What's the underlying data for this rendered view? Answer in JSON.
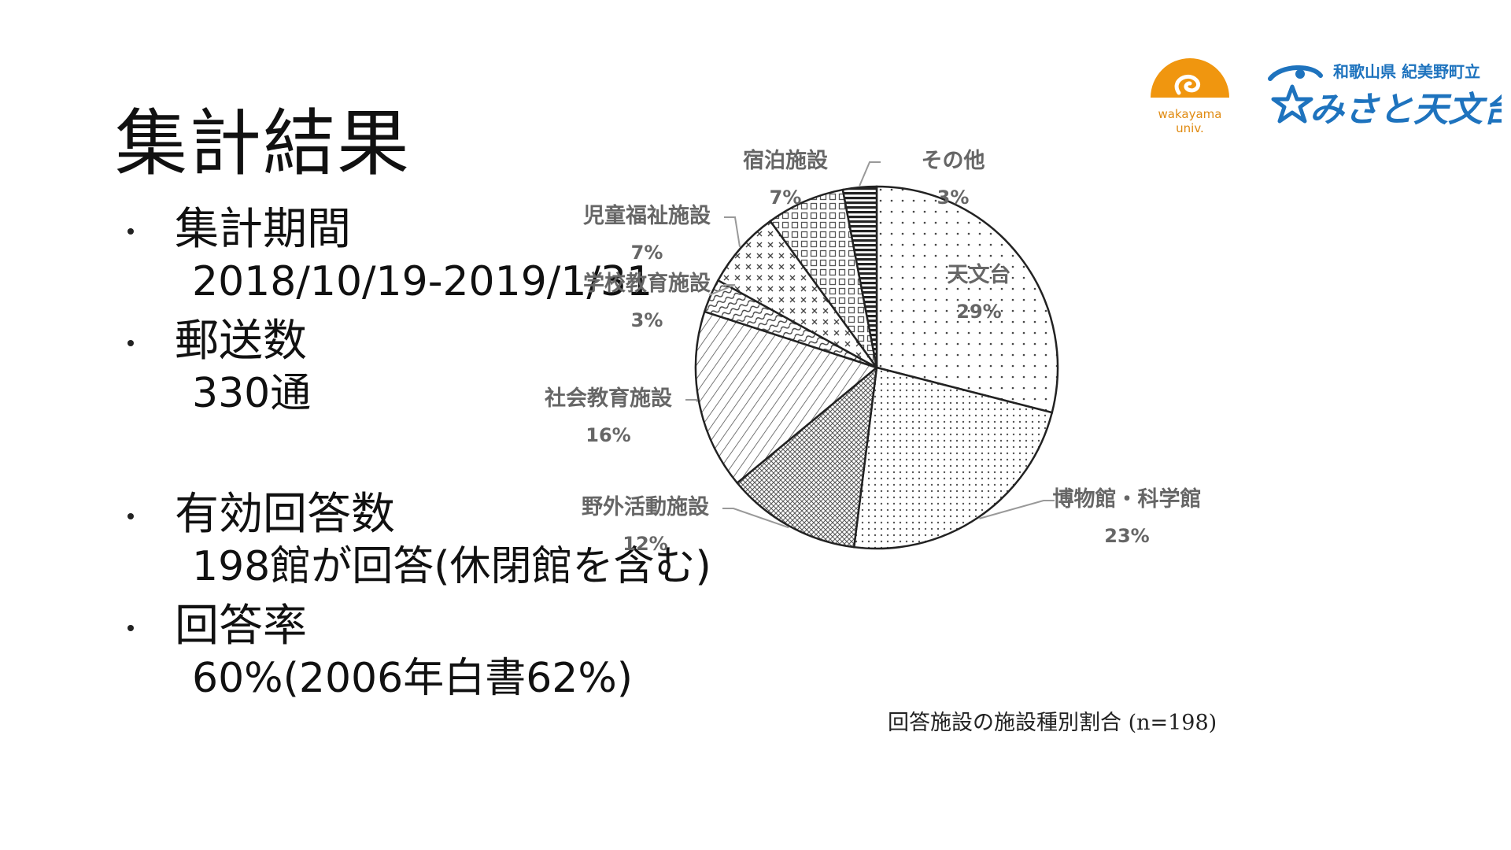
{
  "slide": {
    "title": "集計結果",
    "bullets": [
      {
        "head": "集計期間",
        "sub": "2018/10/19-2019/1/31"
      },
      {
        "head": "郵送数",
        "sub": "330通"
      },
      {
        "head": "有効回答数",
        "sub": "198館が回答(休閉館を含む)"
      },
      {
        "head": "回答率",
        "sub": "60%(2006年白書62%)"
      }
    ]
  },
  "logos": {
    "wakayama_line1": "wakayama",
    "wakayama_line2": "univ.",
    "misato_top": "和歌山県 紀美野町立",
    "misato_main": "みさと天文台",
    "colors": {
      "wakayama_orange": "#F0960F",
      "misato_blue": "#1E73BE"
    }
  },
  "chart_data": {
    "type": "pie",
    "caption": "回答施設の施設種別割合 (n=198)",
    "start_angle_deg": 0,
    "direction": "clockwise",
    "slices": [
      {
        "name": "天文台",
        "label": "29%",
        "value": 29,
        "pattern": "dots-sparse"
      },
      {
        "name": "博物館・科学館",
        "label": "23%",
        "value": 23,
        "pattern": "dots-dense"
      },
      {
        "name": "野外活動施設",
        "label": "12%",
        "value": 12,
        "pattern": "crosshatch-dense"
      },
      {
        "name": "社会教育施設",
        "label": "16%",
        "value": 16,
        "pattern": "diagonal-lines"
      },
      {
        "name": "学校教育施設",
        "label": "3%",
        "value": 3,
        "pattern": "waves"
      },
      {
        "name": "児童福祉施設",
        "label": "7%",
        "value": 7,
        "pattern": "x-marks"
      },
      {
        "name": "宿泊施設",
        "label": "7%",
        "value": 7,
        "pattern": "grid"
      },
      {
        "name": "その他",
        "label": "3%",
        "value": 3,
        "pattern": "horizontal-bars"
      }
    ]
  }
}
